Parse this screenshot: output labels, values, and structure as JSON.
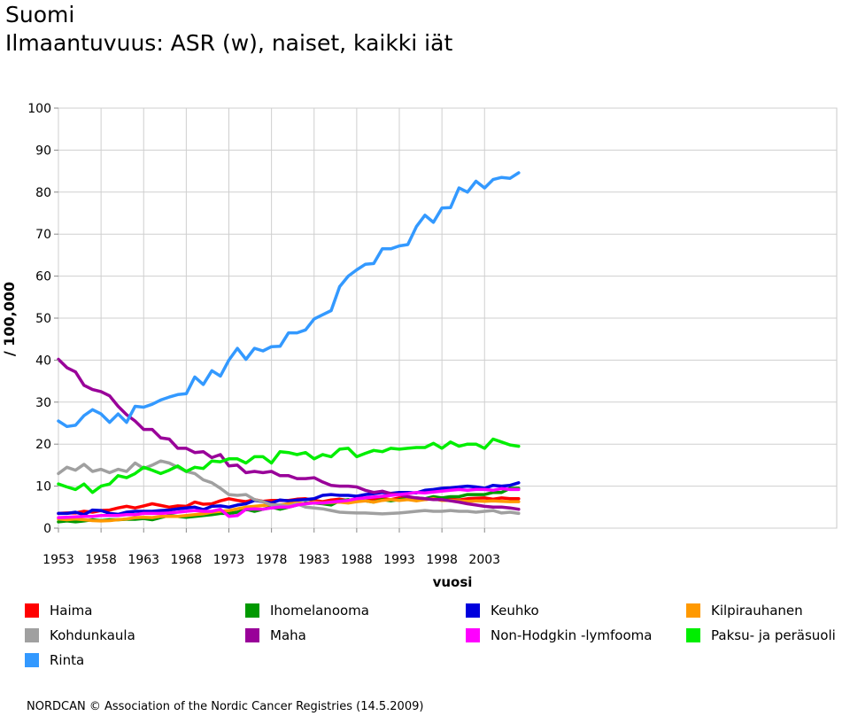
{
  "header": {
    "title": "Suomi",
    "subtitle": "Ilmaantuvuus: ASR (w), naiset, kaikki iät"
  },
  "footer": {
    "text": "NORDCAN © Association of the Nordic Cancer Registries (14.5.2009)"
  },
  "chart_data": {
    "type": "line",
    "title": "Suomi",
    "subtitle": "Ilmaantuvuus: ASR (w), naiset, kaikki iät",
    "xlabel": "vuosi",
    "ylabel": "/ 100,000",
    "xlim": [
      1953,
      2007
    ],
    "ylim": [
      0,
      100
    ],
    "x_ticks": [
      "1953",
      "1958",
      "1963",
      "1968",
      "1973",
      "1978",
      "1983",
      "1988",
      "1993",
      "1998",
      "2003"
    ],
    "y_ticks": [
      "0",
      "10",
      "20",
      "30",
      "40",
      "50",
      "60",
      "70",
      "80",
      "90",
      "100"
    ],
    "grid": true,
    "legend_position": "bottom",
    "x": [
      1953,
      1954,
      1955,
      1956,
      1957,
      1958,
      1959,
      1960,
      1961,
      1962,
      1963,
      1964,
      1965,
      1966,
      1967,
      1968,
      1969,
      1970,
      1971,
      1972,
      1973,
      1974,
      1975,
      1976,
      1977,
      1978,
      1979,
      1980,
      1981,
      1982,
      1983,
      1984,
      1985,
      1986,
      1987,
      1988,
      1989,
      1990,
      1991,
      1992,
      1993,
      1994,
      1995,
      1996,
      1997,
      1998,
      1999,
      2000,
      2001,
      2002,
      2003,
      2004,
      2005,
      2006,
      2007
    ],
    "series": [
      {
        "name": "Haima",
        "color": "#ff0000",
        "values": [
          3.5,
          3.6,
          3.6,
          4.0,
          3.8,
          4.2,
          4.3,
          4.8,
          5.2,
          4.8,
          5.3,
          5.8,
          5.4,
          5.0,
          5.3,
          5.2,
          6.2,
          5.7,
          5.8,
          6.5,
          7.0,
          6.6,
          6.3,
          6.8,
          6.4,
          6.6,
          6.6,
          6.6,
          6.9,
          7.0,
          6.6,
          6.3,
          6.7,
          6.9,
          6.6,
          7.0,
          6.9,
          7.0,
          7.1,
          6.8,
          7.2,
          7.0,
          7.0,
          6.8,
          7.1,
          6.6,
          6.9,
          6.7,
          7.0,
          7.1,
          7.2,
          6.9,
          7.2,
          7.0,
          7.0
        ]
      },
      {
        "name": "Ihomelanooma",
        "color": "#009900",
        "values": [
          1.5,
          1.7,
          1.5,
          1.7,
          2.0,
          1.8,
          2.0,
          2.0,
          2.1,
          2.1,
          2.3,
          2.0,
          2.5,
          3.0,
          2.8,
          2.6,
          2.8,
          3.0,
          3.2,
          3.5,
          3.5,
          3.8,
          4.5,
          4.0,
          4.5,
          5.0,
          4.5,
          5.0,
          5.5,
          6.0,
          6.0,
          5.8,
          5.5,
          6.5,
          6.8,
          6.5,
          6.5,
          6.2,
          6.8,
          6.5,
          6.8,
          7.0,
          7.2,
          7.0,
          7.5,
          7.2,
          7.5,
          7.5,
          8.0,
          8.0,
          8.0,
          8.5,
          8.5,
          9.5,
          9.5
        ]
      },
      {
        "name": "Keuhko",
        "color": "#0000dd",
        "values": [
          3.5,
          3.5,
          3.8,
          3.2,
          4.3,
          4.2,
          3.5,
          3.3,
          3.8,
          4.0,
          4.0,
          4.0,
          4.2,
          4.3,
          4.6,
          4.8,
          5.0,
          4.4,
          5.2,
          5.3,
          5.0,
          5.5,
          5.8,
          6.6,
          6.3,
          6.0,
          6.7,
          6.5,
          6.7,
          6.8,
          7.0,
          7.8,
          8.0,
          7.8,
          7.8,
          7.6,
          8.0,
          8.2,
          8.5,
          8.3,
          8.5,
          8.5,
          8.4,
          9.0,
          9.2,
          9.5,
          9.6,
          9.8,
          10.0,
          9.8,
          9.5,
          10.2,
          10.0,
          10.2,
          10.8
        ]
      },
      {
        "name": "Kilpirauhanen",
        "color": "#ff9900",
        "values": [
          2.2,
          2.0,
          2.2,
          2.0,
          1.8,
          1.7,
          1.8,
          2.0,
          2.2,
          2.5,
          2.6,
          2.5,
          2.8,
          2.8,
          2.8,
          3.0,
          3.2,
          3.4,
          3.8,
          4.0,
          4.2,
          4.6,
          5.0,
          5.2,
          5.4,
          5.6,
          5.5,
          5.8,
          6.0,
          5.8,
          6.2,
          6.0,
          6.1,
          6.2,
          6.0,
          6.3,
          6.5,
          6.2,
          6.6,
          6.8,
          6.6,
          6.8,
          6.5,
          6.8,
          7.0,
          6.6,
          6.6,
          6.5,
          6.4,
          6.5,
          6.4,
          6.5,
          6.4,
          6.3,
          6.3
        ]
      },
      {
        "name": "Kohdunkaula",
        "color": "#a0a0a0",
        "values": [
          13.0,
          14.5,
          13.8,
          15.2,
          13.5,
          14.0,
          13.2,
          14.0,
          13.5,
          15.5,
          14.2,
          15.0,
          16.0,
          15.5,
          14.5,
          13.5,
          13.0,
          11.5,
          10.8,
          9.5,
          8.0,
          7.8,
          8.0,
          6.8,
          6.3,
          5.5,
          5.5,
          5.2,
          5.8,
          5.0,
          4.8,
          4.6,
          4.2,
          3.8,
          3.7,
          3.6,
          3.6,
          3.5,
          3.4,
          3.5,
          3.6,
          3.8,
          4.0,
          4.2,
          4.0,
          4.0,
          4.2,
          4.0,
          4.0,
          3.8,
          4.0,
          4.2,
          3.6,
          3.8,
          3.5
        ]
      },
      {
        "name": "Maha",
        "color": "#990099",
        "values": [
          40.2,
          38.2,
          37.2,
          34.0,
          33.0,
          32.5,
          31.5,
          29.0,
          27.0,
          25.5,
          23.5,
          23.5,
          21.5,
          21.2,
          19.0,
          19.0,
          18.0,
          18.2,
          16.8,
          17.5,
          14.8,
          15.0,
          13.2,
          13.5,
          13.2,
          13.5,
          12.5,
          12.5,
          11.8,
          11.8,
          12.0,
          11.0,
          10.2,
          10.0,
          10.0,
          9.8,
          9.0,
          8.5,
          8.8,
          8.2,
          8.0,
          7.5,
          7.2,
          7.0,
          6.8,
          6.8,
          6.5,
          6.2,
          5.8,
          5.5,
          5.2,
          5.0,
          5.0,
          4.8,
          4.5
        ]
      },
      {
        "name": "Non-Hodgkin -lymfooma",
        "color": "#ff00ff",
        "values": [
          2.5,
          2.6,
          2.7,
          2.8,
          2.8,
          3.0,
          3.0,
          3.0,
          3.2,
          3.2,
          3.5,
          3.5,
          3.5,
          3.6,
          3.8,
          4.0,
          4.2,
          4.0,
          4.0,
          4.5,
          2.8,
          3.0,
          4.5,
          4.6,
          4.5,
          4.8,
          5.0,
          5.0,
          5.5,
          5.8,
          6.0,
          6.0,
          6.2,
          6.4,
          6.6,
          7.0,
          7.2,
          7.4,
          7.6,
          7.8,
          8.0,
          8.2,
          8.5,
          8.4,
          8.6,
          8.8,
          9.0,
          9.2,
          9.0,
          9.2,
          9.2,
          9.0,
          9.4,
          9.2,
          9.2
        ]
      },
      {
        "name": "Paksu- ja peräsuoli",
        "color": "#00ee00",
        "values": [
          10.5,
          9.8,
          9.2,
          10.5,
          8.5,
          10.0,
          10.5,
          12.5,
          12.0,
          13.0,
          14.5,
          13.8,
          13.0,
          13.8,
          14.8,
          13.5,
          14.5,
          14.2,
          16.0,
          15.8,
          16.5,
          16.5,
          15.5,
          17.0,
          17.0,
          15.5,
          18.2,
          18.0,
          17.5,
          18.0,
          16.5,
          17.5,
          17.0,
          18.8,
          19.0,
          17.0,
          17.8,
          18.5,
          18.2,
          19.0,
          18.8,
          19.0,
          19.2,
          19.2,
          20.2,
          19.0,
          20.5,
          19.5,
          20.0,
          20.0,
          19.0,
          21.2,
          20.5,
          19.8,
          19.5
        ]
      },
      {
        "name": "Rinta",
        "color": "#3399ff",
        "values": [
          25.5,
          24.2,
          24.5,
          26.8,
          28.2,
          27.2,
          25.2,
          27.2,
          25.2,
          29.0,
          28.8,
          29.5,
          30.5,
          31.2,
          31.8,
          32.0,
          36.0,
          34.2,
          37.5,
          36.2,
          40.0,
          42.8,
          40.2,
          42.8,
          42.2,
          43.2,
          43.3,
          46.5,
          46.5,
          47.2,
          49.8,
          50.8,
          51.8,
          57.5,
          60.0,
          61.5,
          62.8,
          63.0,
          66.5,
          66.5,
          67.2,
          67.5,
          71.8,
          74.5,
          72.8,
          76.2,
          76.3,
          81.0,
          80.0,
          82.6,
          81.0,
          83.0,
          83.5,
          83.3,
          84.6
        ]
      }
    ]
  }
}
